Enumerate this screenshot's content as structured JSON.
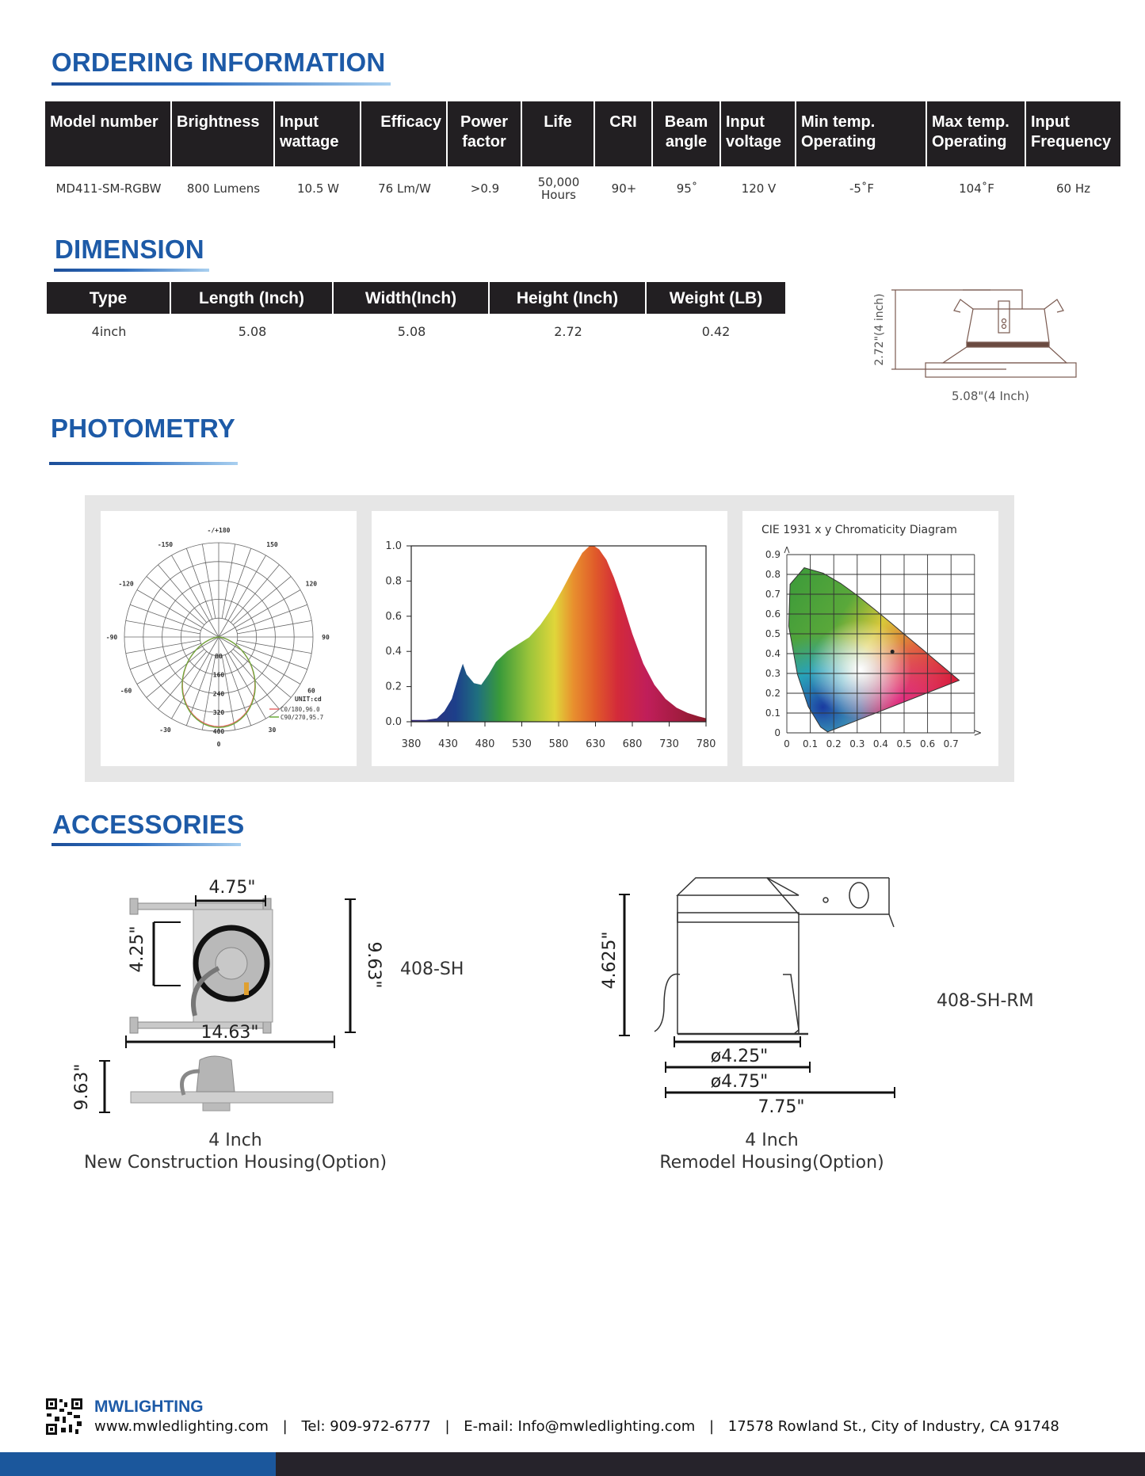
{
  "ordering": {
    "title": "ORDERING INFORMATION",
    "headers": [
      "Model number",
      "Brightness",
      "Input\nwattage",
      "Efficacy",
      "Power\nfactor",
      "Life",
      "CRI",
      "Beam\nangle",
      "Input\nvoltage",
      "Min temp.\nOperating",
      "Max temp.\nOperating",
      "Input\nFrequency"
    ],
    "row": [
      "MD411-SM-RGBW",
      "800 Lumens",
      "10.5 W",
      "76 Lm/W",
      ">0.9",
      "50,000\nHours",
      "90+",
      "95˚",
      "120 V",
      "-5˚F",
      "104˚F",
      "60 Hz"
    ]
  },
  "dimension": {
    "title": "DIMENSION",
    "headers": [
      "Type",
      "Length (Inch)",
      "Width(Inch)",
      "Height  (Inch)",
      "Weight (LB)"
    ],
    "row": [
      "4inch",
      "5.08",
      "5.08",
      "2.72",
      "0.42"
    ],
    "drawing": {
      "height_label": "2.72\"(4 inch)",
      "width_label": "5.08\"(4 Inch)"
    }
  },
  "photometry": {
    "title": "PHOTOMETRY",
    "polar": {
      "angle_labels": [
        {
          "angle": 180,
          "text": "-/+180"
        },
        {
          "angle": -150,
          "text": "-150"
        },
        {
          "angle": 150,
          "text": "150"
        },
        {
          "angle": -120,
          "text": "-120"
        },
        {
          "angle": 120,
          "text": "120"
        },
        {
          "angle": -90,
          "text": "-90"
        },
        {
          "angle": 90,
          "text": "90"
        },
        {
          "angle": -60,
          "text": "-60"
        },
        {
          "angle": 60,
          "text": "60"
        },
        {
          "angle": -30,
          "text": "-30"
        },
        {
          "angle": 30,
          "text": "30"
        },
        {
          "angle": 0,
          "text": "0"
        }
      ],
      "radial_labels": [
        "80",
        "160",
        "240",
        "320",
        "400"
      ],
      "radial_max": 400,
      "unit": "UNIT:cd",
      "legend": [
        {
          "text": "C0/180,96.0",
          "color": "#e86a6a"
        },
        {
          "text": "C90/270,95.7",
          "color": "#6aaa3a"
        }
      ],
      "beam_angle_deg": 95
    },
    "cie": {
      "title": "CIE 1931 x y Chromaticity Diagram",
      "x_ticks": [
        "0",
        "0.1",
        "0.2",
        "0.3",
        "0.4",
        "0.5",
        "0.6",
        "0.7"
      ],
      "y_ticks": [
        "0",
        "0.1",
        "0.2",
        "0.3",
        "0.4",
        "0.5",
        "0.6",
        "0.7",
        "0.8",
        "0.9"
      ],
      "point": {
        "x": 0.45,
        "y": 0.41
      }
    }
  },
  "chart_data": [
    {
      "type": "area",
      "title": "",
      "xlabel": "",
      "ylabel": "",
      "xlim": [
        380,
        780
      ],
      "ylim": [
        0,
        1.0
      ],
      "x_ticks": [
        "380",
        "430",
        "480",
        "530",
        "580",
        "630",
        "680",
        "730",
        "780"
      ],
      "y_ticks": [
        "0.0",
        "0.2",
        "0.4",
        "0.6",
        "0.8",
        "1.0"
      ],
      "x": [
        380,
        400,
        415,
        425,
        435,
        445,
        450,
        455,
        465,
        475,
        485,
        495,
        510,
        525,
        540,
        555,
        570,
        585,
        600,
        612,
        622,
        628,
        635,
        645,
        655,
        665,
        680,
        695,
        710,
        725,
        740,
        755,
        770,
        780
      ],
      "y": [
        0.01,
        0.01,
        0.02,
        0.06,
        0.13,
        0.27,
        0.33,
        0.27,
        0.22,
        0.21,
        0.27,
        0.34,
        0.4,
        0.44,
        0.48,
        0.55,
        0.64,
        0.75,
        0.87,
        0.96,
        1.0,
        1.0,
        0.98,
        0.92,
        0.82,
        0.7,
        0.5,
        0.33,
        0.21,
        0.13,
        0.08,
        0.05,
        0.03,
        0.02
      ]
    }
  ],
  "accessories": {
    "title": "ACCESSORIES",
    "new_construction": {
      "model": "408-SH",
      "dim_top": "4.75\"",
      "dim_left": "4.25\"",
      "dim_right": "9.63\"",
      "dim_bottom": "14.63\"",
      "dim_side": "9.63\"",
      "caption_line1": "4 Inch",
      "caption_line2": "New Construction Housing(Option)"
    },
    "remodel": {
      "model": "408-SH-RM",
      "dim_height": "4.625\"",
      "dim_d1": "ø4.25\"",
      "dim_d2": "ø4.75\"",
      "dim_total": "7.75\"",
      "caption_line1": "4 Inch",
      "caption_line2": "Remodel Housing(Option)"
    }
  },
  "footer": {
    "brand": "MWLIGHTING",
    "website": "www.mwledlighting.com",
    "tel": "Tel: 909-972-6777",
    "email": "E-mail: Info@mwledlighting.com",
    "address": "17578 Rowland St., City of Industry, CA 91748",
    "separator": "|",
    "bar_colors": {
      "left": "#1b579c",
      "right": "#26232b"
    }
  },
  "colors": {
    "title": "#1d5aa7",
    "table_header": "#221f22"
  }
}
